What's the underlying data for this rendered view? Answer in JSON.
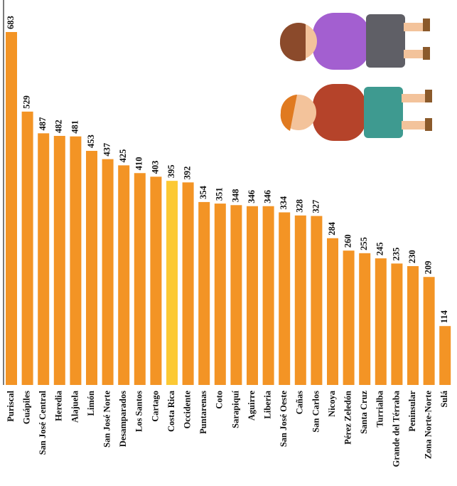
{
  "chart_data": {
    "type": "bar",
    "categories": [
      "Puriscal",
      "Guápiles",
      "San José Central",
      "Heredia",
      "Alajuela",
      "Limón",
      "San José Norte",
      "Desamparados",
      "Los Santos",
      "Cartago",
      "Costa Rica",
      "Occidente",
      "Puntarenas",
      "Coto",
      "Sarapiquí",
      "Aguirre",
      "Liberia",
      "San José Oeste",
      "Cañas",
      "San Carlos",
      "Nicoya",
      "Pérez Zeledón",
      "Santa Cruz",
      "Turrialba",
      "Grande del Térraba",
      "Peninsular",
      "Zona Norte-Norte",
      "Sulá"
    ],
    "values": [
      683,
      529,
      487,
      482,
      481,
      453,
      437,
      425,
      410,
      403,
      395,
      392,
      354,
      351,
      348,
      346,
      346,
      334,
      328,
      327,
      284,
      260,
      255,
      245,
      235,
      230,
      209,
      114
    ],
    "colors": [
      "#f39425",
      "#f39425",
      "#f39425",
      "#f39425",
      "#f39425",
      "#f39425",
      "#f39425",
      "#f39425",
      "#f39425",
      "#f39425",
      "#fcc934",
      "#f39425",
      "#f39425",
      "#f39425",
      "#f39425",
      "#f39425",
      "#f39425",
      "#f39425",
      "#f39425",
      "#f39425",
      "#f39425",
      "#f39425",
      "#f39425",
      "#f39425",
      "#f39425",
      "#f39425",
      "#f39425",
      "#f39425"
    ]
  }
}
